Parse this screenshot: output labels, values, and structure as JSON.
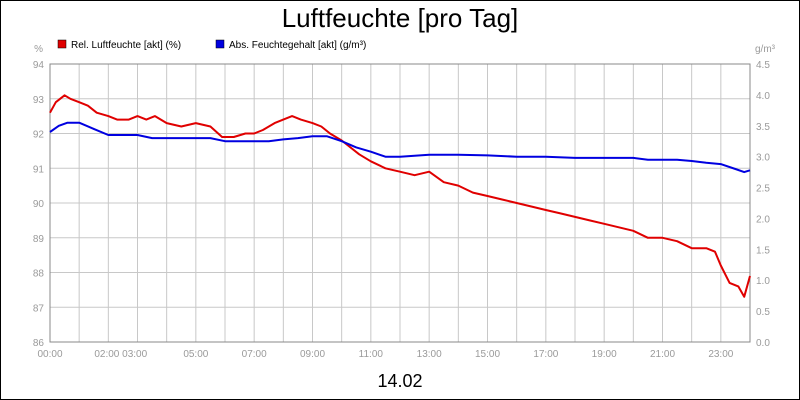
{
  "chart_data": {
    "type": "line",
    "title": "Luftfeuchte [pro Tag]",
    "xlabel": "14.02",
    "ylabel_left": "%",
    "ylabel_right": "g/m³",
    "ylim_left": [
      86,
      94
    ],
    "ylim_right": [
      0.0,
      4.5
    ],
    "xlim": [
      0,
      24
    ],
    "grid": true,
    "legend_placement": "top-left",
    "x_tick_labels": [
      "00:00",
      "02:00 03:00",
      "05:00",
      "07:00",
      "09:00",
      "11:00",
      "13:00",
      "15:00",
      "17:00",
      "19:00",
      "21:00",
      "23:00"
    ],
    "left_tick_labels": [
      "86",
      "87",
      "88",
      "89",
      "90",
      "91",
      "92",
      "93",
      "94"
    ],
    "right_tick_labels": [
      "0.0",
      "0.5",
      "1.0",
      "1.5",
      "2.0",
      "2.5",
      "3.0",
      "3.5",
      "4.0",
      "4.5"
    ],
    "series": [
      {
        "name": "Rel. Luftfeuchte [akt] (%)",
        "color": "#e00000",
        "axis": "left",
        "x": [
          0,
          0.2,
          0.5,
          0.7,
          1.0,
          1.3,
          1.6,
          2.0,
          2.3,
          2.7,
          3.0,
          3.3,
          3.6,
          4.0,
          4.5,
          5.0,
          5.5,
          5.9,
          6.3,
          6.7,
          7.0,
          7.3,
          7.7,
          8.0,
          8.3,
          8.6,
          9.0,
          9.3,
          9.6,
          10.0,
          10.3,
          10.6,
          11.0,
          11.5,
          12.0,
          12.5,
          13.0,
          13.5,
          14.0,
          14.5,
          15.0,
          15.5,
          16.0,
          16.5,
          17.0,
          17.5,
          18.0,
          18.5,
          19.0,
          19.5,
          20.0,
          20.5,
          21.0,
          21.5,
          22.0,
          22.5,
          22.8,
          23.0,
          23.3,
          23.6,
          23.8,
          24.0
        ],
        "values": [
          92.6,
          92.9,
          93.1,
          93.0,
          92.9,
          92.8,
          92.6,
          92.5,
          92.4,
          92.4,
          92.5,
          92.4,
          92.5,
          92.3,
          92.2,
          92.3,
          92.2,
          91.9,
          91.9,
          92.0,
          92.0,
          92.1,
          92.3,
          92.4,
          92.5,
          92.4,
          92.3,
          92.2,
          92.0,
          91.8,
          91.6,
          91.4,
          91.2,
          91.0,
          90.9,
          90.8,
          90.9,
          90.6,
          90.5,
          90.3,
          90.2,
          90.1,
          90.0,
          89.9,
          89.8,
          89.7,
          89.6,
          89.5,
          89.4,
          89.3,
          89.2,
          89.0,
          89.0,
          88.9,
          88.7,
          88.7,
          88.6,
          88.2,
          87.7,
          87.6,
          87.3,
          87.9
        ]
      },
      {
        "name": "Abs. Feuchtegehalt [akt] (g/m³)",
        "color": "#0000e0",
        "axis": "right",
        "x": [
          0,
          0.3,
          0.6,
          1.0,
          1.5,
          2.0,
          2.5,
          3.0,
          3.5,
          4.0,
          4.5,
          5.0,
          5.5,
          6.0,
          6.5,
          7.0,
          7.5,
          8.0,
          8.5,
          9.0,
          9.5,
          10.0,
          10.5,
          11.0,
          11.5,
          12.0,
          13.0,
          14.0,
          15.0,
          16.0,
          17.0,
          18.0,
          19.0,
          20.0,
          20.5,
          21.0,
          21.5,
          22.0,
          22.5,
          23.0,
          23.5,
          23.8,
          24.0
        ],
        "values": [
          3.4,
          3.5,
          3.55,
          3.55,
          3.45,
          3.35,
          3.35,
          3.35,
          3.3,
          3.3,
          3.3,
          3.3,
          3.3,
          3.25,
          3.25,
          3.25,
          3.25,
          3.28,
          3.3,
          3.33,
          3.33,
          3.25,
          3.15,
          3.08,
          3.0,
          3.0,
          3.03,
          3.03,
          3.02,
          3.0,
          3.0,
          2.98,
          2.98,
          2.98,
          2.95,
          2.95,
          2.95,
          2.93,
          2.9,
          2.88,
          2.8,
          2.75,
          2.78
        ]
      }
    ]
  }
}
